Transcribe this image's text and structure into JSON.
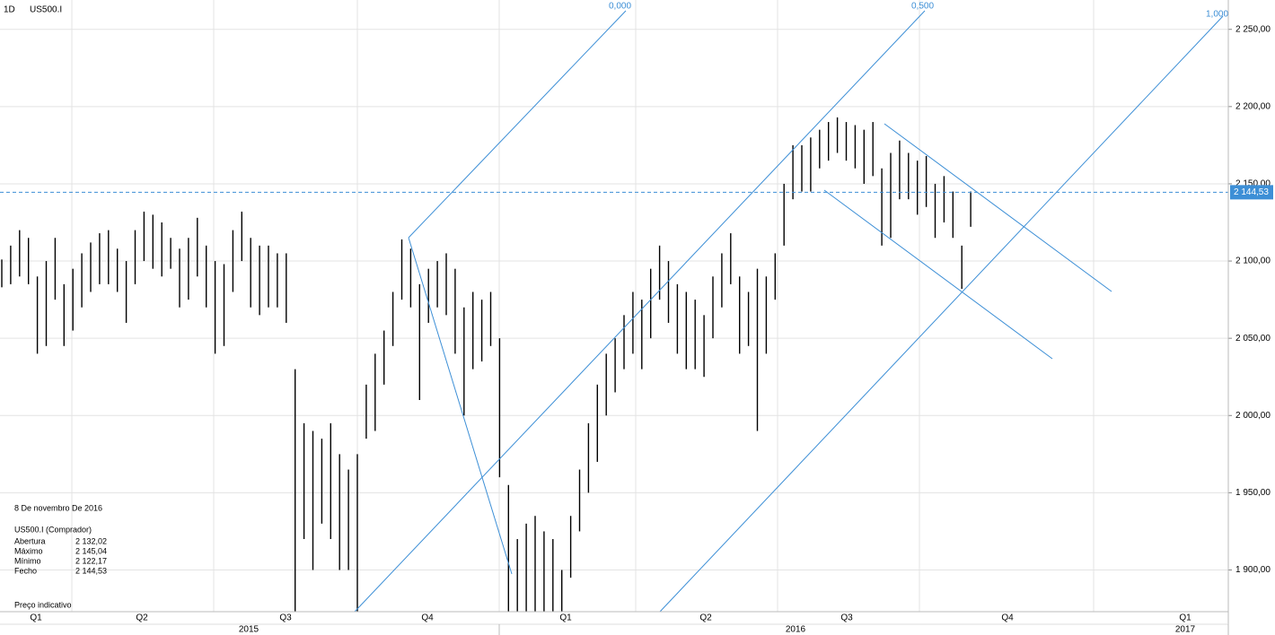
{
  "chart_data": {
    "type": "ohlc",
    "interval": "1D",
    "symbol": "US500.I",
    "color": "#000000",
    "line_color": "#3d8fd6",
    "grid": true,
    "ylim": [
      1873,
      2269
    ],
    "yticks": [
      {
        "value": 1900,
        "label": "1 900,00"
      },
      {
        "value": 1950,
        "label": "1 950,00"
      },
      {
        "value": 2000,
        "label": "2 000,00"
      },
      {
        "value": 2050,
        "label": "2 050,00"
      },
      {
        "value": 2100,
        "label": "2 100,00"
      },
      {
        "value": 2150,
        "label": "2 150,00"
      },
      {
        "value": 2200,
        "label": "2 200,00"
      },
      {
        "value": 2250,
        "label": "2 250,00"
      }
    ],
    "quarters": [
      "Q1",
      "Q2",
      "Q3",
      "Q4",
      "Q1",
      "Q2",
      "Q3",
      "Q4",
      "Q1"
    ],
    "years": [
      "2015",
      "2016",
      "2017"
    ],
    "fib_labels": [
      "0,000",
      "0,500",
      "1,000"
    ],
    "last_price": {
      "value": 2144.53,
      "label": "2 144,53"
    },
    "high": [
      2101,
      2110,
      2120,
      2115,
      2090,
      2100,
      2115,
      2085,
      2095,
      2105,
      2112,
      2118,
      2120,
      2108,
      2100,
      2120,
      2132,
      2130,
      2125,
      2115,
      2108,
      2115,
      2128,
      2110,
      2100,
      2098,
      2120,
      2132,
      2115,
      2110,
      2110,
      2105,
      2105,
      2030,
      1995,
      1990,
      1985,
      1995,
      1975,
      1965,
      1975,
      2020,
      2040,
      2055,
      2080,
      2114,
      2108,
      2085,
      2095,
      2100,
      2105,
      2095,
      2070,
      2080,
      2075,
      2080,
      2050,
      1955,
      1920,
      1930,
      1935,
      1925,
      1920,
      1900,
      1935,
      1965,
      1995,
      2020,
      2040,
      2050,
      2065,
      2080,
      2075,
      2095,
      2110,
      2100,
      2085,
      2080,
      2075,
      2065,
      2090,
      2105,
      2118,
      2090,
      2080,
      2095,
      2090,
      2105,
      2150,
      2175,
      2175,
      2180,
      2185,
      2190,
      2193,
      2190,
      2188,
      2185,
      2190,
      2160,
      2170,
      2178,
      2170,
      2165,
      2168,
      2150,
      2155,
      2145,
      2110,
      2145.04
    ],
    "low": [
      2083,
      2085,
      2090,
      2085,
      2040,
      2045,
      2075,
      2045,
      2055,
      2070,
      2080,
      2085,
      2085,
      2080,
      2060,
      2085,
      2100,
      2095,
      2090,
      2095,
      2070,
      2075,
      2090,
      2070,
      2040,
      2045,
      2080,
      2100,
      2070,
      2065,
      2070,
      2070,
      2060,
      1873,
      1920,
      1900,
      1930,
      1920,
      1900,
      1900,
      1873,
      1985,
      1990,
      2020,
      2045,
      2075,
      2070,
      2010,
      2060,
      2070,
      2065,
      2040,
      2000,
      2030,
      2035,
      2045,
      1960,
      1873,
      1873,
      1873,
      1873,
      1873,
      1873,
      1873,
      1895,
      1925,
      1950,
      1970,
      2000,
      2015,
      2030,
      2040,
      2030,
      2050,
      2075,
      2060,
      2040,
      2030,
      2030,
      2025,
      2050,
      2070,
      2085,
      2040,
      2045,
      1990,
      2040,
      2075,
      2110,
      2140,
      2145,
      2145,
      2160,
      2165,
      2170,
      2165,
      2160,
      2150,
      2155,
      2110,
      2115,
      2140,
      2140,
      2130,
      2135,
      2115,
      2125,
      2115,
      2082,
      2122.17
    ],
    "info": {
      "date": "8 De novembro De 2016",
      "instrument": "US500.I (Comprador)",
      "rows": [
        [
          "Abertura",
          "2 132,02"
        ],
        [
          "Máximo",
          "2 145,04"
        ],
        [
          "Mínimo",
          "2 122,17"
        ],
        [
          "Fecho",
          "2 144,53"
        ]
      ],
      "note": "Preço indicativo"
    }
  }
}
